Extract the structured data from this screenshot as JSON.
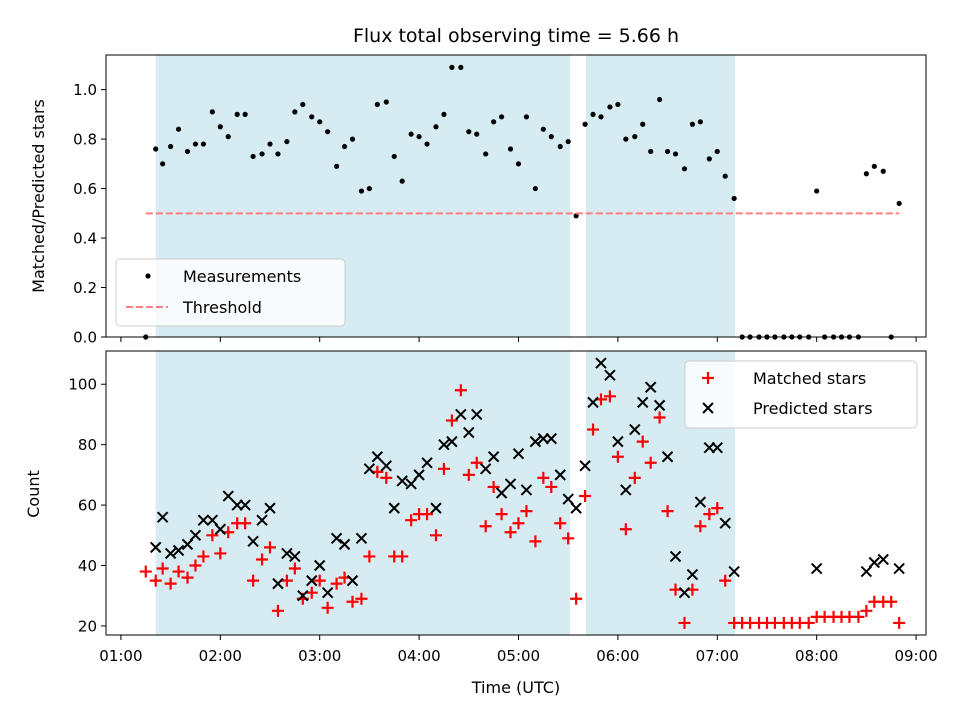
{
  "chart_data": [
    {
      "type": "scatter",
      "title": "Flux total observing time = 5.66 h",
      "ylabel": "Matched/Predicted stars",
      "xlabel": "",
      "ylim": [
        0,
        1.14
      ],
      "yticks": [
        0.0,
        0.2,
        0.4,
        0.6,
        0.8,
        1.0
      ],
      "ytick_labels": [
        "0.0",
        "0.2",
        "0.4",
        "0.6",
        "0.8",
        "1.0"
      ],
      "xlim": [
        0.85,
        9.1
      ],
      "grid": false,
      "legend_position": "lower-left",
      "observing_windows": [
        [
          1.35,
          5.52
        ],
        [
          5.68,
          7.18
        ]
      ],
      "series": [
        {
          "name": "Measurements",
          "color": "#000000",
          "marker": "dot",
          "points": [
            [
              1.25,
              0.0
            ],
            [
              1.35,
              0.76
            ],
            [
              1.42,
              0.7
            ],
            [
              1.5,
              0.77
            ],
            [
              1.58,
              0.84
            ],
            [
              1.67,
              0.75
            ],
            [
              1.75,
              0.78
            ],
            [
              1.83,
              0.78
            ],
            [
              1.92,
              0.91
            ],
            [
              2.0,
              0.85
            ],
            [
              2.08,
              0.81
            ],
            [
              2.17,
              0.9
            ],
            [
              2.25,
              0.9
            ],
            [
              2.33,
              0.73
            ],
            [
              2.42,
              0.74
            ],
            [
              2.5,
              0.78
            ],
            [
              2.58,
              0.74
            ],
            [
              2.67,
              0.79
            ],
            [
              2.75,
              0.91
            ],
            [
              2.83,
              0.94
            ],
            [
              2.92,
              0.89
            ],
            [
              3.0,
              0.87
            ],
            [
              3.08,
              0.83
            ],
            [
              3.17,
              0.69
            ],
            [
              3.25,
              0.77
            ],
            [
              3.33,
              0.8
            ],
            [
              3.42,
              0.59
            ],
            [
              3.5,
              0.6
            ],
            [
              3.58,
              0.94
            ],
            [
              3.67,
              0.95
            ],
            [
              3.75,
              0.73
            ],
            [
              3.83,
              0.63
            ],
            [
              3.92,
              0.82
            ],
            [
              4.0,
              0.81
            ],
            [
              4.08,
              0.78
            ],
            [
              4.17,
              0.85
            ],
            [
              4.25,
              0.9
            ],
            [
              4.33,
              1.09
            ],
            [
              4.42,
              1.09
            ],
            [
              4.5,
              0.83
            ],
            [
              4.58,
              0.82
            ],
            [
              4.67,
              0.74
            ],
            [
              4.75,
              0.87
            ],
            [
              4.83,
              0.89
            ],
            [
              4.92,
              0.76
            ],
            [
              5.0,
              0.7
            ],
            [
              5.08,
              0.89
            ],
            [
              5.17,
              0.6
            ],
            [
              5.25,
              0.84
            ],
            [
              5.33,
              0.81
            ],
            [
              5.42,
              0.77
            ],
            [
              5.5,
              0.79
            ],
            [
              5.58,
              0.49
            ],
            [
              5.67,
              0.86
            ],
            [
              5.75,
              0.9
            ],
            [
              5.83,
              0.89
            ],
            [
              5.92,
              0.93
            ],
            [
              6.0,
              0.94
            ],
            [
              6.08,
              0.8
            ],
            [
              6.17,
              0.81
            ],
            [
              6.25,
              0.86
            ],
            [
              6.33,
              0.75
            ],
            [
              6.42,
              0.96
            ],
            [
              6.5,
              0.75
            ],
            [
              6.58,
              0.74
            ],
            [
              6.67,
              0.68
            ],
            [
              6.75,
              0.86
            ],
            [
              6.83,
              0.87
            ],
            [
              6.92,
              0.72
            ],
            [
              7.0,
              0.75
            ],
            [
              7.08,
              0.65
            ],
            [
              7.17,
              0.56
            ],
            [
              7.25,
              0.0
            ],
            [
              7.33,
              0.0
            ],
            [
              7.42,
              0.0
            ],
            [
              7.5,
              0.0
            ],
            [
              7.58,
              0.0
            ],
            [
              7.67,
              0.0
            ],
            [
              7.75,
              0.0
            ],
            [
              7.83,
              0.0
            ],
            [
              7.92,
              0.0
            ],
            [
              8.0,
              0.59
            ],
            [
              8.08,
              0.0
            ],
            [
              8.17,
              0.0
            ],
            [
              8.25,
              0.0
            ],
            [
              8.33,
              0.0
            ],
            [
              8.42,
              0.0
            ],
            [
              8.5,
              0.66
            ],
            [
              8.58,
              0.69
            ],
            [
              8.67,
              0.67
            ],
            [
              8.75,
              0.0
            ],
            [
              8.83,
              0.54
            ]
          ]
        },
        {
          "name": "Threshold",
          "color": "#ff7f7f",
          "style": "dashed",
          "points": [
            [
              1.25,
              0.5
            ],
            [
              8.83,
              0.5
            ]
          ]
        }
      ]
    },
    {
      "type": "scatter",
      "title": "",
      "xlabel": "Time (UTC)",
      "ylabel": "Count",
      "ylim": [
        17,
        111
      ],
      "yticks": [
        20,
        40,
        60,
        80,
        100
      ],
      "ytick_labels": [
        "20",
        "40",
        "60",
        "80",
        "100"
      ],
      "xlim": [
        0.85,
        9.1
      ],
      "xticks": [
        1,
        2,
        3,
        4,
        5,
        6,
        7,
        8,
        9
      ],
      "xtick_labels": [
        "01:00",
        "02:00",
        "03:00",
        "04:00",
        "05:00",
        "06:00",
        "07:00",
        "08:00",
        "09:00"
      ],
      "grid": false,
      "legend_position": "top-right",
      "observing_windows": [
        [
          1.35,
          5.52
        ],
        [
          5.68,
          7.18
        ]
      ],
      "series": [
        {
          "name": "Matched stars",
          "color": "#ff0000",
          "marker": "plus",
          "points": [
            [
              1.25,
              38
            ],
            [
              1.35,
              35
            ],
            [
              1.42,
              39
            ],
            [
              1.5,
              34
            ],
            [
              1.58,
              38
            ],
            [
              1.67,
              36
            ],
            [
              1.75,
              40
            ],
            [
              1.83,
              43
            ],
            [
              1.92,
              50
            ],
            [
              2.0,
              44
            ],
            [
              2.08,
              51
            ],
            [
              2.17,
              54
            ],
            [
              2.25,
              54
            ],
            [
              2.33,
              35
            ],
            [
              2.42,
              42
            ],
            [
              2.5,
              46
            ],
            [
              2.58,
              25
            ],
            [
              2.67,
              35
            ],
            [
              2.75,
              39
            ],
            [
              2.83,
              29
            ],
            [
              2.92,
              31
            ],
            [
              3.0,
              35
            ],
            [
              3.08,
              26
            ],
            [
              3.17,
              34
            ],
            [
              3.25,
              36
            ],
            [
              3.33,
              28
            ],
            [
              3.42,
              29
            ],
            [
              3.5,
              43
            ],
            [
              3.58,
              71
            ],
            [
              3.67,
              69
            ],
            [
              3.75,
              43
            ],
            [
              3.83,
              43
            ],
            [
              3.92,
              55
            ],
            [
              4.0,
              57
            ],
            [
              4.08,
              57
            ],
            [
              4.17,
              50
            ],
            [
              4.25,
              72
            ],
            [
              4.33,
              88
            ],
            [
              4.42,
              98
            ],
            [
              4.5,
              70
            ],
            [
              4.58,
              74
            ],
            [
              4.67,
              53
            ],
            [
              4.75,
              66
            ],
            [
              4.83,
              57
            ],
            [
              4.92,
              51
            ],
            [
              5.0,
              54
            ],
            [
              5.08,
              58
            ],
            [
              5.17,
              48
            ],
            [
              5.25,
              69
            ],
            [
              5.33,
              66
            ],
            [
              5.42,
              54
            ],
            [
              5.5,
              49
            ],
            [
              5.58,
              29
            ],
            [
              5.67,
              63
            ],
            [
              5.75,
              85
            ],
            [
              5.83,
              95
            ],
            [
              5.92,
              96
            ],
            [
              6.0,
              76
            ],
            [
              6.08,
              52
            ],
            [
              6.17,
              69
            ],
            [
              6.25,
              81
            ],
            [
              6.33,
              74
            ],
            [
              6.42,
              89
            ],
            [
              6.5,
              58
            ],
            [
              6.58,
              32
            ],
            [
              6.67,
              21
            ],
            [
              6.75,
              32
            ],
            [
              6.83,
              53
            ],
            [
              6.92,
              57
            ],
            [
              7.0,
              59
            ],
            [
              7.08,
              35
            ],
            [
              7.17,
              21
            ],
            [
              7.25,
              21
            ],
            [
              7.33,
              21
            ],
            [
              7.42,
              21
            ],
            [
              7.5,
              21
            ],
            [
              7.58,
              21
            ],
            [
              7.67,
              21
            ],
            [
              7.75,
              21
            ],
            [
              7.83,
              21
            ],
            [
              7.92,
              21
            ],
            [
              8.0,
              23
            ],
            [
              8.08,
              23
            ],
            [
              8.17,
              23
            ],
            [
              8.25,
              23
            ],
            [
              8.33,
              23
            ],
            [
              8.42,
              23
            ],
            [
              8.5,
              25
            ],
            [
              8.58,
              28
            ],
            [
              8.67,
              28
            ],
            [
              8.75,
              28
            ],
            [
              8.83,
              21
            ]
          ]
        },
        {
          "name": "Predicted stars",
          "color": "#000000",
          "marker": "x",
          "points": [
            [
              1.35,
              46
            ],
            [
              1.42,
              56
            ],
            [
              1.5,
              44
            ],
            [
              1.58,
              45
            ],
            [
              1.67,
              47
            ],
            [
              1.75,
              50
            ],
            [
              1.83,
              55
            ],
            [
              1.92,
              55
            ],
            [
              2.0,
              52
            ],
            [
              2.08,
              63
            ],
            [
              2.17,
              60
            ],
            [
              2.25,
              60
            ],
            [
              2.33,
              48
            ],
            [
              2.42,
              55
            ],
            [
              2.5,
              59
            ],
            [
              2.58,
              34
            ],
            [
              2.67,
              44
            ],
            [
              2.75,
              43
            ],
            [
              2.83,
              30
            ],
            [
              2.92,
              35
            ],
            [
              3.0,
              40
            ],
            [
              3.08,
              31
            ],
            [
              3.17,
              49
            ],
            [
              3.25,
              47
            ],
            [
              3.33,
              35
            ],
            [
              3.42,
              49
            ],
            [
              3.5,
              72
            ],
            [
              3.58,
              76
            ],
            [
              3.67,
              73
            ],
            [
              3.75,
              59
            ],
            [
              3.83,
              68
            ],
            [
              3.92,
              67
            ],
            [
              4.0,
              70
            ],
            [
              4.08,
              74
            ],
            [
              4.17,
              59
            ],
            [
              4.25,
              80
            ],
            [
              4.33,
              81
            ],
            [
              4.42,
              90
            ],
            [
              4.5,
              84
            ],
            [
              4.58,
              90
            ],
            [
              4.67,
              72
            ],
            [
              4.75,
              76
            ],
            [
              4.83,
              64
            ],
            [
              4.92,
              67
            ],
            [
              5.0,
              77
            ],
            [
              5.08,
              65
            ],
            [
              5.17,
              81
            ],
            [
              5.25,
              82
            ],
            [
              5.33,
              82
            ],
            [
              5.42,
              70
            ],
            [
              5.5,
              62
            ],
            [
              5.58,
              59
            ],
            [
              5.67,
              73
            ],
            [
              5.75,
              94
            ],
            [
              5.83,
              107
            ],
            [
              5.92,
              103
            ],
            [
              6.0,
              81
            ],
            [
              6.08,
              65
            ],
            [
              6.17,
              85
            ],
            [
              6.25,
              94
            ],
            [
              6.33,
              99
            ],
            [
              6.42,
              93
            ],
            [
              6.5,
              76
            ],
            [
              6.58,
              43
            ],
            [
              6.67,
              31
            ],
            [
              6.75,
              37
            ],
            [
              6.83,
              61
            ],
            [
              6.92,
              79
            ],
            [
              7.0,
              79
            ],
            [
              7.08,
              54
            ],
            [
              7.17,
              38
            ],
            [
              8.0,
              39
            ],
            [
              8.5,
              38
            ],
            [
              8.58,
              41
            ],
            [
              8.67,
              42
            ],
            [
              8.83,
              39
            ]
          ]
        }
      ]
    }
  ]
}
